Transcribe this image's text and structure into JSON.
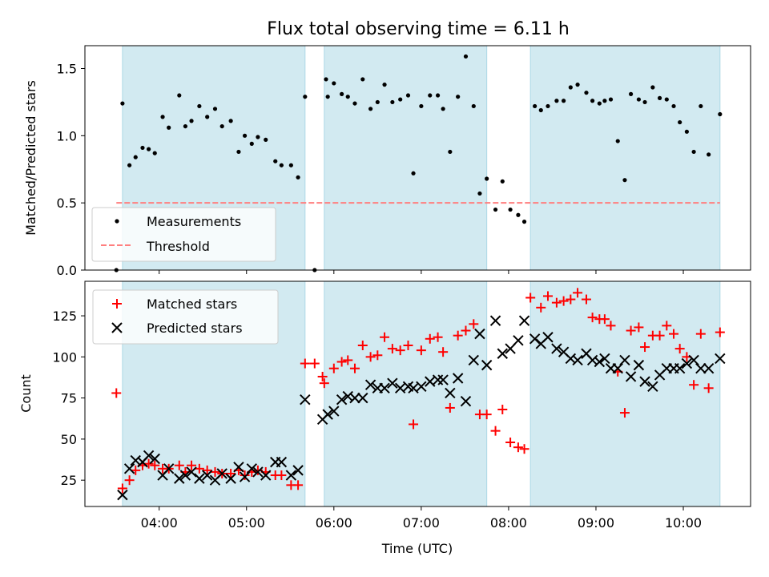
{
  "title": "Flux total observing time = 6.11 h",
  "xlabel": "Time (UTC)",
  "x_tick_labels": [
    "04:00",
    "05:00",
    "06:00",
    "07:00",
    "08:00",
    "09:00",
    "10:00"
  ],
  "colors": {
    "shade": "#add8e6",
    "measurement": "#000000",
    "threshold": "#ff7f7f",
    "matched": "#ff0000",
    "predicted": "#000000"
  },
  "chart_data": [
    {
      "type": "scatter",
      "ylabel": "Matched/Predicted stars",
      "x_range_hours": [
        3.15,
        10.77
      ],
      "ylim": [
        0,
        1.67
      ],
      "y_ticks": [
        "0.0",
        "0.5",
        "1.0",
        "1.5"
      ],
      "y_tick_values": [
        0,
        0.5,
        1.0,
        1.5
      ],
      "shaded_intervals_hours": [
        [
          3.58,
          5.67
        ],
        [
          5.89,
          7.75
        ],
        [
          8.25,
          10.42
        ]
      ],
      "legend": {
        "position": "lower-left",
        "entries": [
          "Measurements",
          "Threshold"
        ]
      },
      "threshold": {
        "name": "Threshold",
        "value": 0.5,
        "x_from": 3.51,
        "x_to": 10.42
      },
      "series": [
        {
          "name": "Measurements",
          "marker": "dot",
          "points": [
            [
              3.51,
              0.0
            ],
            [
              3.58,
              1.24
            ],
            [
              3.66,
              0.78
            ],
            [
              3.73,
              0.84
            ],
            [
              3.81,
              0.91
            ],
            [
              3.88,
              0.9
            ],
            [
              3.95,
              0.87
            ],
            [
              4.04,
              1.14
            ],
            [
              4.11,
              1.06
            ],
            [
              4.23,
              1.3
            ],
            [
              4.3,
              1.07
            ],
            [
              4.37,
              1.11
            ],
            [
              4.46,
              1.22
            ],
            [
              4.55,
              1.14
            ],
            [
              4.64,
              1.2
            ],
            [
              4.72,
              1.07
            ],
            [
              4.82,
              1.11
            ],
            [
              4.91,
              0.88
            ],
            [
              4.98,
              1.0
            ],
            [
              5.06,
              0.94
            ],
            [
              5.13,
              0.99
            ],
            [
              5.22,
              0.97
            ],
            [
              5.33,
              0.81
            ],
            [
              5.4,
              0.78
            ],
            [
              5.51,
              0.78
            ],
            [
              5.59,
              0.69
            ],
            [
              5.67,
              1.29
            ],
            [
              5.78,
              0.0
            ],
            [
              5.91,
              1.42
            ],
            [
              5.93,
              1.29
            ],
            [
              6.0,
              1.39
            ],
            [
              6.09,
              1.31
            ],
            [
              6.16,
              1.29
            ],
            [
              6.24,
              1.24
            ],
            [
              6.33,
              1.42
            ],
            [
              6.42,
              1.2
            ],
            [
              6.5,
              1.25
            ],
            [
              6.58,
              1.38
            ],
            [
              6.67,
              1.25
            ],
            [
              6.76,
              1.27
            ],
            [
              6.85,
              1.3
            ],
            [
              6.91,
              0.72
            ],
            [
              7.0,
              1.22
            ],
            [
              7.1,
              1.3
            ],
            [
              7.19,
              1.3
            ],
            [
              7.25,
              1.2
            ],
            [
              7.33,
              0.88
            ],
            [
              7.42,
              1.29
            ],
            [
              7.51,
              1.59
            ],
            [
              7.6,
              1.22
            ],
            [
              7.67,
              0.57
            ],
            [
              7.75,
              0.68
            ],
            [
              7.85,
              0.45
            ],
            [
              7.93,
              0.66
            ],
            [
              8.02,
              0.45
            ],
            [
              8.11,
              0.41
            ],
            [
              8.18,
              0.36
            ],
            [
              8.3,
              1.22
            ],
            [
              8.37,
              1.19
            ],
            [
              8.45,
              1.22
            ],
            [
              8.55,
              1.26
            ],
            [
              8.63,
              1.26
            ],
            [
              8.71,
              1.36
            ],
            [
              8.79,
              1.38
            ],
            [
              8.89,
              1.32
            ],
            [
              8.96,
              1.26
            ],
            [
              9.04,
              1.24
            ],
            [
              9.1,
              1.26
            ],
            [
              9.17,
              1.27
            ],
            [
              9.25,
              0.96
            ],
            [
              9.33,
              0.67
            ],
            [
              9.4,
              1.31
            ],
            [
              9.49,
              1.27
            ],
            [
              9.56,
              1.25
            ],
            [
              9.65,
              1.36
            ],
            [
              9.73,
              1.28
            ],
            [
              9.81,
              1.27
            ],
            [
              9.89,
              1.22
            ],
            [
              9.96,
              1.1
            ],
            [
              10.04,
              1.03
            ],
            [
              10.12,
              0.88
            ],
            [
              10.2,
              1.22
            ],
            [
              10.29,
              0.86
            ],
            [
              10.42,
              1.16
            ]
          ]
        }
      ]
    },
    {
      "type": "scatter",
      "ylabel": "Count",
      "x_range_hours": [
        3.15,
        10.77
      ],
      "ylim": [
        9,
        146
      ],
      "y_ticks": [
        "25",
        "50",
        "75",
        "100",
        "125"
      ],
      "y_tick_values": [
        25,
        50,
        75,
        100,
        125
      ],
      "shaded_intervals_hours": [
        [
          3.58,
          5.67
        ],
        [
          5.89,
          7.75
        ],
        [
          8.25,
          10.42
        ]
      ],
      "legend": {
        "position": "upper-left",
        "entries": [
          "Matched stars",
          "Predicted stars"
        ]
      },
      "series": [
        {
          "name": "Matched stars",
          "marker": "plus",
          "points": [
            [
              3.51,
              78
            ],
            [
              3.58,
              20
            ],
            [
              3.66,
              25
            ],
            [
              3.73,
              31
            ],
            [
              3.81,
              34
            ],
            [
              3.88,
              35
            ],
            [
              3.95,
              34
            ],
            [
              4.04,
              32
            ],
            [
              4.11,
              32
            ],
            [
              4.23,
              34
            ],
            [
              4.3,
              30
            ],
            [
              4.37,
              34
            ],
            [
              4.46,
              32
            ],
            [
              4.55,
              31
            ],
            [
              4.64,
              30
            ],
            [
              4.72,
              29
            ],
            [
              4.82,
              29
            ],
            [
              4.91,
              31
            ],
            [
              4.98,
              28
            ],
            [
              5.06,
              30
            ],
            [
              5.13,
              31
            ],
            [
              5.22,
              30
            ],
            [
              5.33,
              28
            ],
            [
              5.4,
              28
            ],
            [
              5.51,
              22
            ],
            [
              5.59,
              22
            ],
            [
              5.67,
              96
            ],
            [
              5.78,
              96
            ],
            [
              5.87,
              88
            ],
            [
              5.89,
              84
            ],
            [
              6.0,
              93
            ],
            [
              6.09,
              97
            ],
            [
              6.16,
              98
            ],
            [
              6.24,
              93
            ],
            [
              6.33,
              107
            ],
            [
              6.42,
              100
            ],
            [
              6.5,
              101
            ],
            [
              6.58,
              112
            ],
            [
              6.67,
              105
            ],
            [
              6.76,
              104
            ],
            [
              6.85,
              107
            ],
            [
              6.91,
              59
            ],
            [
              7.0,
              104
            ],
            [
              7.1,
              111
            ],
            [
              7.19,
              112
            ],
            [
              7.25,
              103
            ],
            [
              7.33,
              69
            ],
            [
              7.42,
              113
            ],
            [
              7.51,
              116
            ],
            [
              7.6,
              120
            ],
            [
              7.67,
              65
            ],
            [
              7.75,
              65
            ],
            [
              7.85,
              55
            ],
            [
              7.93,
              68
            ],
            [
              8.02,
              48
            ],
            [
              8.11,
              45
            ],
            [
              8.18,
              44
            ],
            [
              8.25,
              136
            ],
            [
              8.37,
              130
            ],
            [
              8.45,
              137
            ],
            [
              8.55,
              133
            ],
            [
              8.63,
              134
            ],
            [
              8.71,
              135
            ],
            [
              8.79,
              139
            ],
            [
              8.89,
              135
            ],
            [
              8.96,
              124
            ],
            [
              9.04,
              123
            ],
            [
              9.1,
              123
            ],
            [
              9.17,
              119
            ],
            [
              9.25,
              91
            ],
            [
              9.33,
              66
            ],
            [
              9.4,
              116
            ],
            [
              9.49,
              118
            ],
            [
              9.56,
              106
            ],
            [
              9.65,
              113
            ],
            [
              9.73,
              113
            ],
            [
              9.81,
              119
            ],
            [
              9.89,
              114
            ],
            [
              9.96,
              105
            ],
            [
              10.04,
              100
            ],
            [
              10.12,
              83
            ],
            [
              10.2,
              114
            ],
            [
              10.29,
              81
            ],
            [
              10.42,
              115
            ]
          ]
        },
        {
          "name": "Predicted stars",
          "marker": "x",
          "points": [
            [
              3.58,
              16
            ],
            [
              3.66,
              32
            ],
            [
              3.73,
              37
            ],
            [
              3.81,
              36
            ],
            [
              3.88,
              40
            ],
            [
              3.95,
              38
            ],
            [
              4.04,
              28
            ],
            [
              4.11,
              32
            ],
            [
              4.23,
              26
            ],
            [
              4.3,
              28
            ],
            [
              4.37,
              30
            ],
            [
              4.46,
              26
            ],
            [
              4.55,
              28
            ],
            [
              4.64,
              25
            ],
            [
              4.72,
              29
            ],
            [
              4.82,
              26
            ],
            [
              4.91,
              33
            ],
            [
              4.98,
              27
            ],
            [
              5.06,
              32
            ],
            [
              5.13,
              30
            ],
            [
              5.22,
              28
            ],
            [
              5.33,
              36
            ],
            [
              5.4,
              36
            ],
            [
              5.51,
              28
            ],
            [
              5.59,
              31
            ],
            [
              5.67,
              74
            ],
            [
              5.87,
              62
            ],
            [
              5.93,
              65
            ],
            [
              6.0,
              67
            ],
            [
              6.09,
              74
            ],
            [
              6.16,
              76
            ],
            [
              6.24,
              75
            ],
            [
              6.33,
              75
            ],
            [
              6.42,
              83
            ],
            [
              6.5,
              81
            ],
            [
              6.58,
              81
            ],
            [
              6.67,
              84
            ],
            [
              6.76,
              81
            ],
            [
              6.85,
              82
            ],
            [
              6.91,
              81
            ],
            [
              7.0,
              82
            ],
            [
              7.1,
              85
            ],
            [
              7.19,
              86
            ],
            [
              7.25,
              86
            ],
            [
              7.33,
              78
            ],
            [
              7.42,
              87
            ],
            [
              7.51,
              73
            ],
            [
              7.6,
              98
            ],
            [
              7.67,
              114
            ],
            [
              7.75,
              95
            ],
            [
              7.85,
              122
            ],
            [
              7.93,
              102
            ],
            [
              8.02,
              105
            ],
            [
              8.11,
              110
            ],
            [
              8.18,
              122
            ],
            [
              8.3,
              111
            ],
            [
              8.37,
              108
            ],
            [
              8.45,
              112
            ],
            [
              8.55,
              105
            ],
            [
              8.63,
              103
            ],
            [
              8.71,
              99
            ],
            [
              8.79,
              98
            ],
            [
              8.89,
              102
            ],
            [
              8.96,
              98
            ],
            [
              9.04,
              97
            ],
            [
              9.1,
              99
            ],
            [
              9.17,
              93
            ],
            [
              9.25,
              93
            ],
            [
              9.33,
              98
            ],
            [
              9.4,
              88
            ],
            [
              9.49,
              95
            ],
            [
              9.56,
              85
            ],
            [
              9.65,
              82
            ],
            [
              9.73,
              89
            ],
            [
              9.81,
              93
            ],
            [
              9.89,
              93
            ],
            [
              9.96,
              93
            ],
            [
              10.04,
              96
            ],
            [
              10.12,
              98
            ],
            [
              10.2,
              93
            ],
            [
              10.29,
              93
            ],
            [
              10.42,
              99
            ]
          ]
        }
      ]
    }
  ]
}
